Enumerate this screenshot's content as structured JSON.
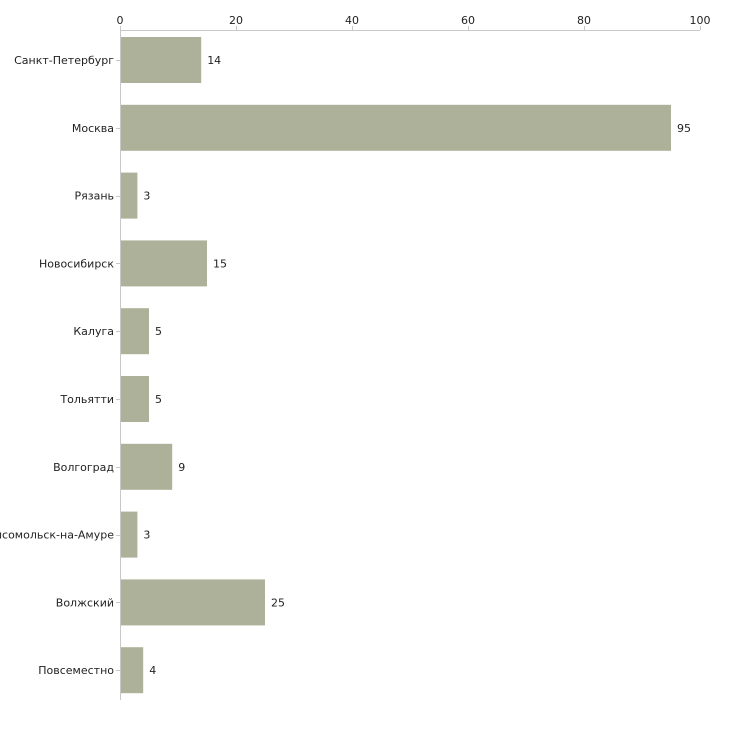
{
  "chart_data": {
    "type": "bar",
    "orientation": "horizontal",
    "title": "",
    "xlabel": "",
    "ylabel": "",
    "xlim": [
      0,
      100
    ],
    "x_ticks": [
      0,
      20,
      40,
      60,
      80,
      100
    ],
    "x_axis_position": "top",
    "grid": false,
    "legend": "none",
    "bar_color": "#adb199",
    "categories": [
      "Санкт-Петербург",
      "Москва",
      "Рязань",
      "Новосибирск",
      "Калуга",
      "Тольятти",
      "Волгоград",
      "Комсомольск-на-Амуре",
      "Волжский",
      "Повсеместно"
    ],
    "values": [
      14,
      95,
      3,
      15,
      5,
      5,
      9,
      3,
      25,
      4
    ]
  }
}
